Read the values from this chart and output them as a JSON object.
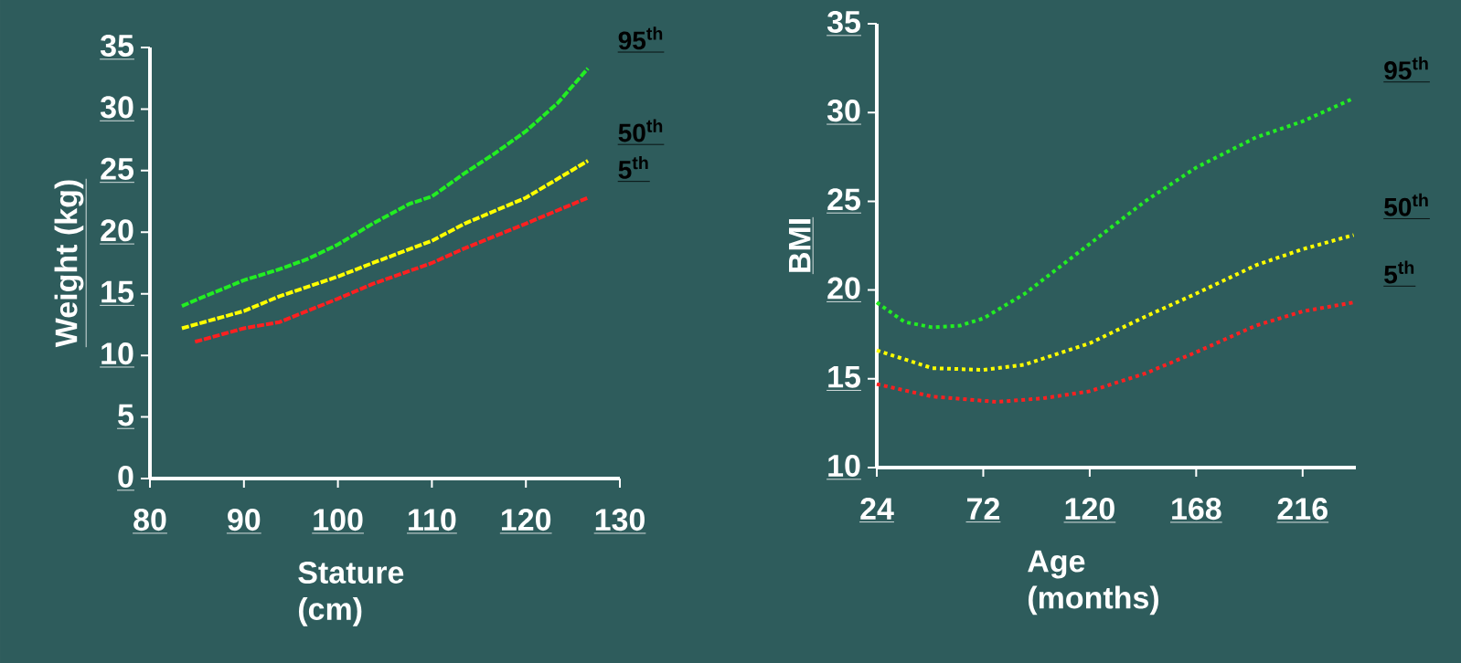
{
  "chart_data": [
    {
      "type": "line",
      "xlabel": "Stature (cm)",
      "ylabel": "Weight (kg)",
      "xlim": [
        80,
        130
      ],
      "ylim": [
        0,
        35
      ],
      "xticks": [
        80,
        90,
        100,
        110,
        120,
        130
      ],
      "yticks": [
        0,
        5,
        10,
        15,
        20,
        25,
        30,
        35
      ],
      "line_style": "dashed",
      "series": [
        {
          "name": "95$^{th}$",
          "color": "#22ee22",
          "x": [
            83.4,
            85.2,
            90,
            93.8,
            96.7,
            100,
            103.7,
            107.6,
            110,
            113.5,
            116.5,
            120,
            123.4,
            126.6
          ],
          "values": [
            14.0,
            14.6,
            16.1,
            17.0,
            17.8,
            19.0,
            20.7,
            22.3,
            22.9,
            24.8,
            26.3,
            28.2,
            30.5,
            33.3
          ]
        },
        {
          "name": "50$^{th}$",
          "color": "#ffff00",
          "x": [
            83.4,
            90,
            93.8,
            100,
            103.7,
            110,
            113.5,
            120,
            126.6
          ],
          "values": [
            12.2,
            13.6,
            14.8,
            16.4,
            17.5,
            19.3,
            20.7,
            22.8,
            25.8
          ]
        },
        {
          "name": "5$^{th}$",
          "color": "#ff2020",
          "x": [
            84.8,
            90,
            93.8,
            100,
            103.7,
            110,
            113.5,
            120,
            126.6
          ],
          "values": [
            11.1,
            12.2,
            12.7,
            14.6,
            15.8,
            17.5,
            18.7,
            20.7,
            22.8
          ]
        }
      ]
    },
    {
      "type": "line",
      "xlabel": "Age (months)",
      "ylabel": "BMI",
      "xlim": [
        24,
        240
      ],
      "ylim": [
        10,
        35
      ],
      "xticks": [
        24,
        72,
        120,
        168,
        216
      ],
      "yticks": [
        10,
        15,
        20,
        25,
        30,
        35
      ],
      "line_style": "dotted",
      "series": [
        {
          "name": "95$^{th}$",
          "color": "#22ee22",
          "x": [
            24,
            36.5,
            49,
            61.6,
            72,
            90.8,
            120,
            145,
            168,
            195,
            216,
            239
          ],
          "values": [
            19.3,
            18.2,
            17.9,
            18.0,
            18.4,
            19.8,
            22.6,
            25.0,
            26.9,
            28.6,
            29.5,
            30.8
          ]
        },
        {
          "name": "50$^{th}$",
          "color": "#ffff00",
          "x": [
            24,
            49,
            72,
            90.8,
            120,
            145,
            168,
            195,
            216,
            239
          ],
          "values": [
            16.6,
            15.6,
            15.5,
            15.8,
            17.0,
            18.5,
            19.8,
            21.4,
            22.3,
            23.1
          ]
        },
        {
          "name": "5$^{th}$",
          "color": "#ff2020",
          "x": [
            24,
            49,
            78,
            99,
            120,
            145,
            168,
            195,
            216,
            239
          ],
          "values": [
            14.7,
            14.0,
            13.7,
            13.9,
            14.3,
            15.3,
            16.5,
            18.0,
            18.8,
            19.3
          ]
        }
      ]
    }
  ]
}
